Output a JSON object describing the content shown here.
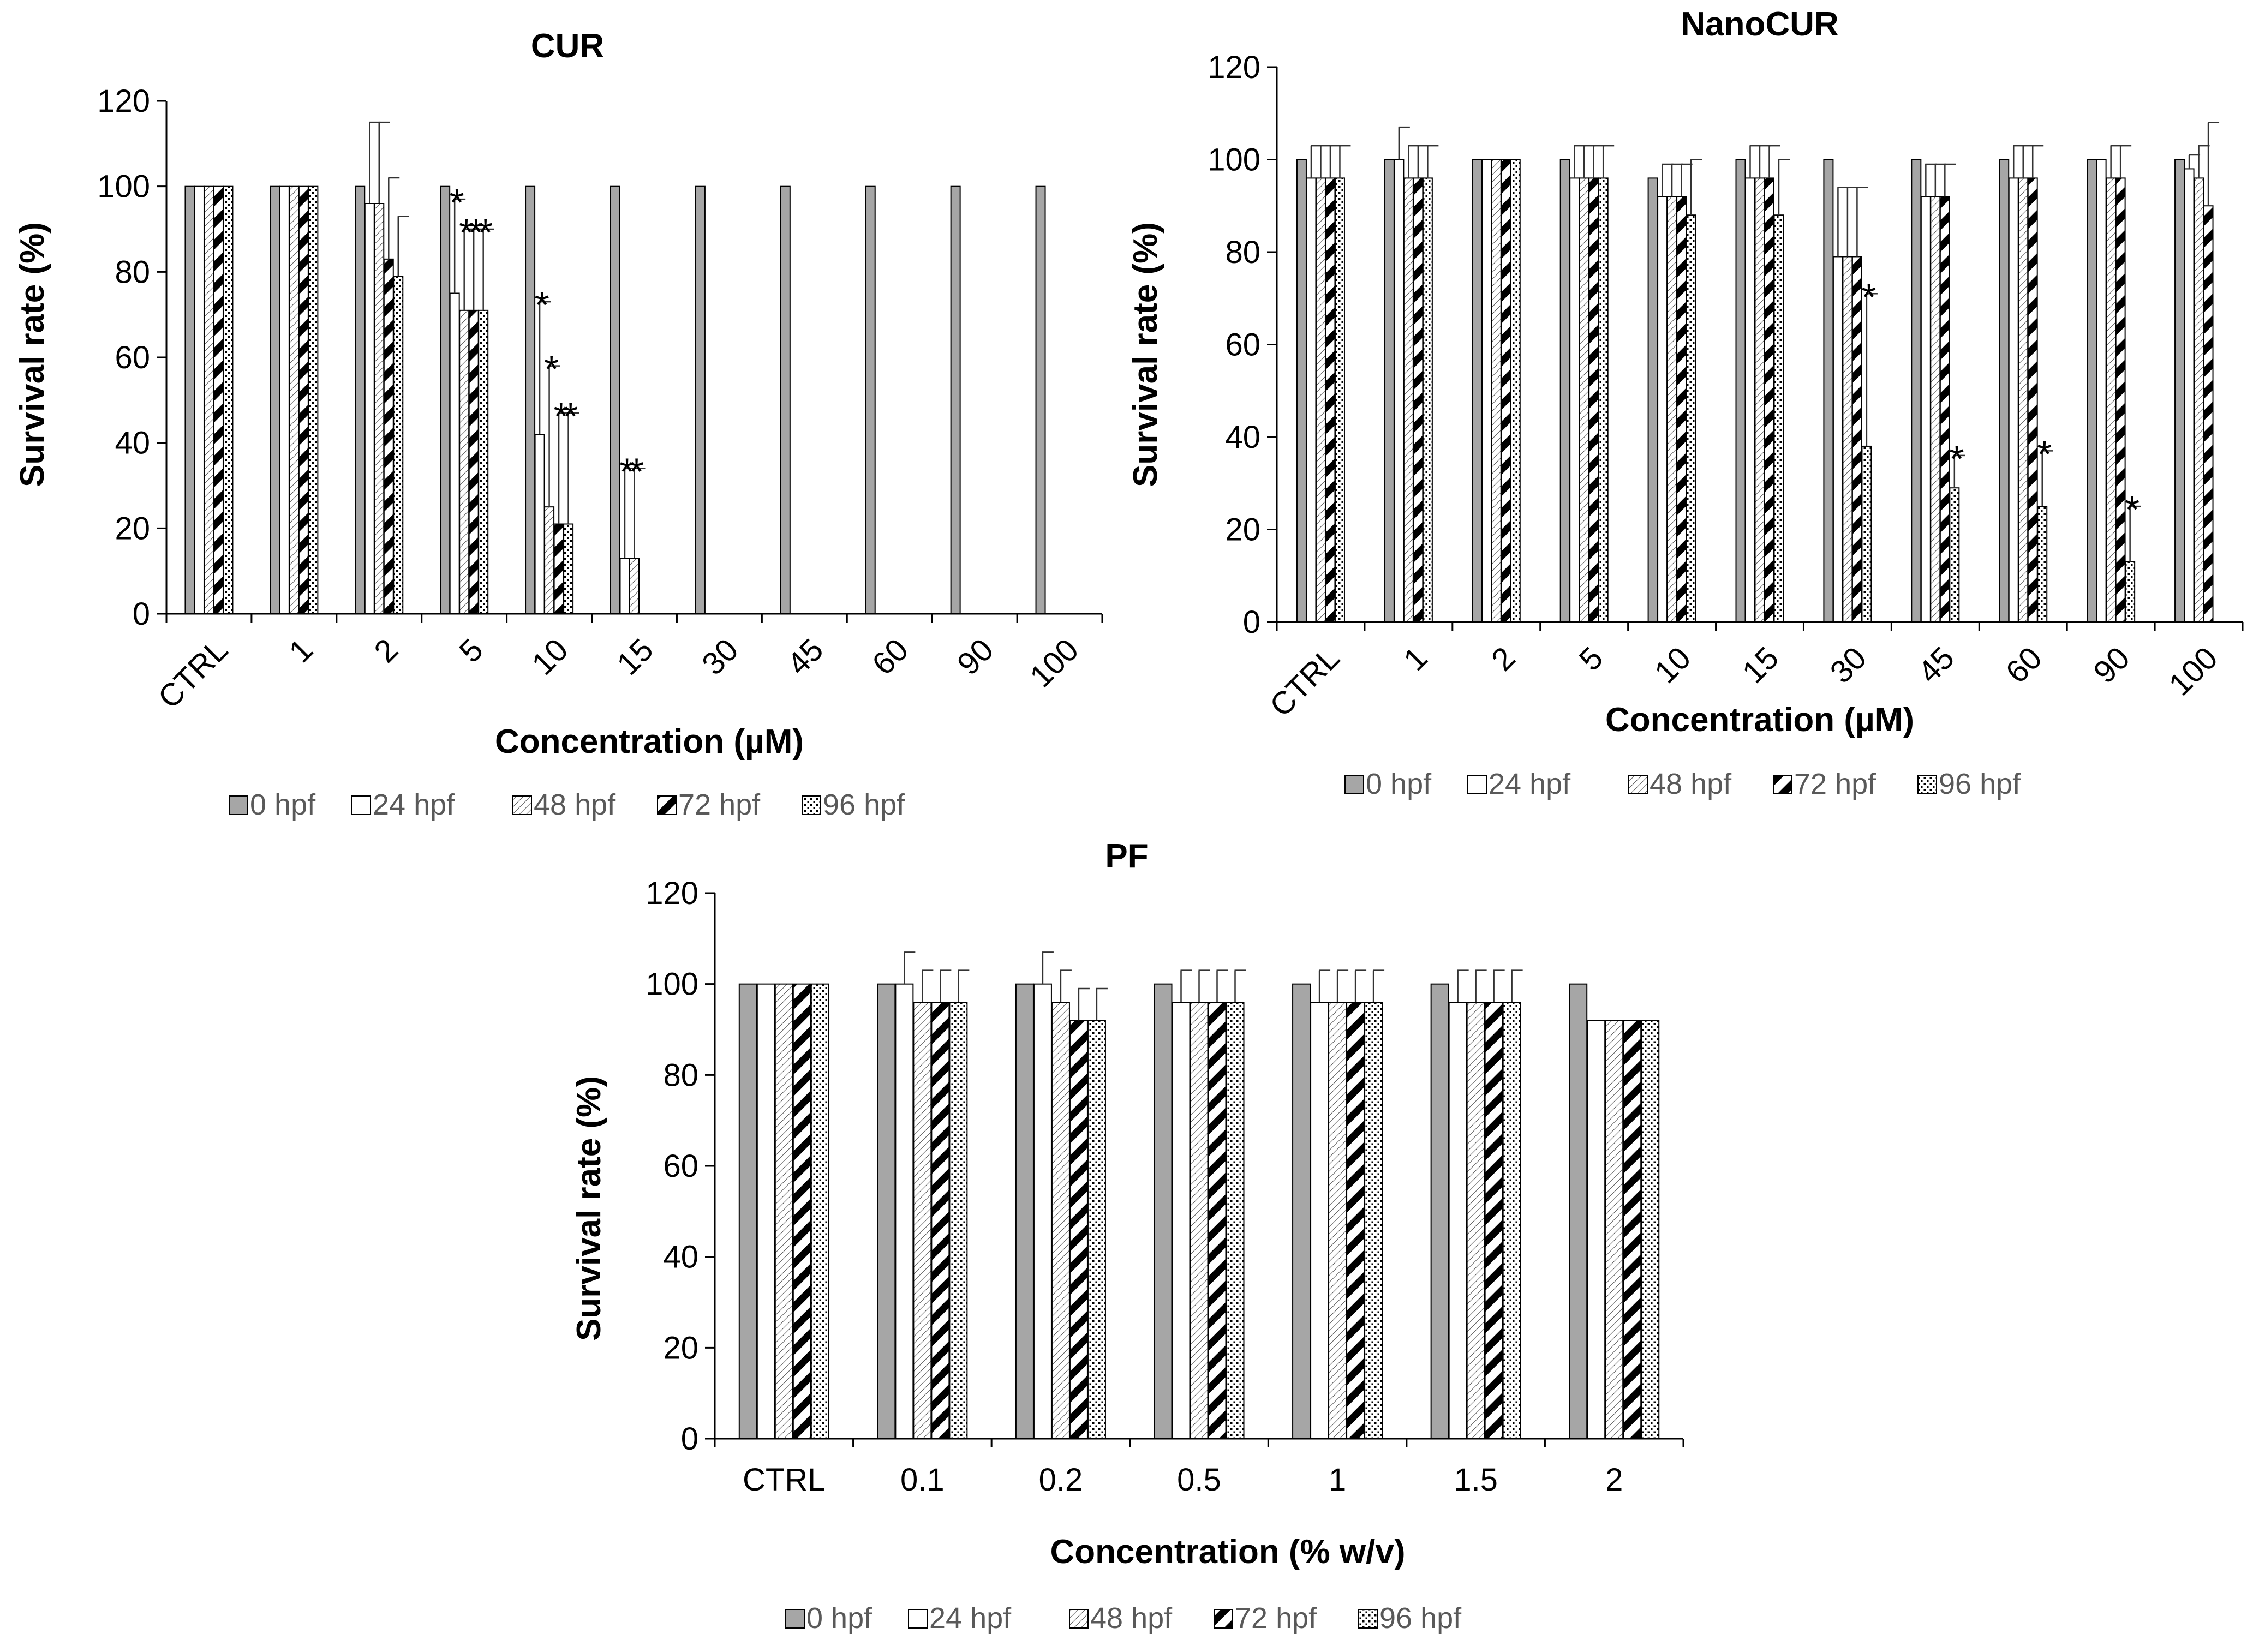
{
  "legend": [
    {
      "label": "0 hpf",
      "pattern": "solid"
    },
    {
      "label": "24 hpf",
      "pattern": "white"
    },
    {
      "label": "48 hpf",
      "pattern": "fine"
    },
    {
      "label": "72 hpf",
      "pattern": "thick"
    },
    {
      "label": "96 hpf",
      "pattern": "dots"
    }
  ],
  "colors": {
    "bar_gray": "#a6a6a6",
    "stroke": "#000000",
    "legend_text": "#595959"
  },
  "chart_data": [
    {
      "id": "cur",
      "type": "bar",
      "title": "CUR",
      "xlabel": "Concentration (µM)",
      "ylabel": "Survival rate (%)",
      "ylim": [
        0,
        120
      ],
      "yticks": [
        0,
        20,
        40,
        60,
        80,
        100,
        120
      ],
      "categories": [
        "CTRL",
        "1",
        "2",
        "5",
        "10",
        "15",
        "30",
        "45",
        "60",
        "90",
        "100"
      ],
      "series": [
        {
          "name": "0 hpf",
          "values": [
            100,
            100,
            100,
            100,
            100,
            100,
            100,
            100,
            100,
            100,
            100
          ]
        },
        {
          "name": "24 hpf",
          "values": [
            100,
            100,
            96,
            75,
            42,
            13,
            0,
            0,
            0,
            0,
            0
          ],
          "errors": [
            0,
            0,
            19,
            22,
            31,
            21,
            0,
            0,
            0,
            0,
            0
          ]
        },
        {
          "name": "48 hpf",
          "values": [
            100,
            100,
            96,
            71,
            25,
            13,
            0,
            0,
            0,
            0,
            0
          ],
          "errors": [
            0,
            0,
            19,
            19,
            33,
            21,
            0,
            0,
            0,
            0,
            0
          ]
        },
        {
          "name": "72 hpf",
          "values": [
            100,
            100,
            83,
            71,
            21,
            0,
            0,
            0,
            0,
            0,
            0
          ],
          "errors": [
            0,
            0,
            19,
            19,
            26,
            0,
            0,
            0,
            0,
            0,
            0
          ]
        },
        {
          "name": "96 hpf",
          "values": [
            100,
            100,
            79,
            71,
            21,
            0,
            0,
            0,
            0,
            0,
            0
          ],
          "errors": [
            0,
            0,
            14,
            19,
            26,
            0,
            0,
            0,
            0,
            0,
            0
          ]
        }
      ],
      "significance": [
        {
          "category": "5",
          "series": "24 hpf"
        },
        {
          "category": "5",
          "series": "48 hpf"
        },
        {
          "category": "5",
          "series": "72 hpf"
        },
        {
          "category": "5",
          "series": "96 hpf"
        },
        {
          "category": "10",
          "series": "24 hpf"
        },
        {
          "category": "10",
          "series": "48 hpf"
        },
        {
          "category": "10",
          "series": "72 hpf"
        },
        {
          "category": "10",
          "series": "96 hpf"
        },
        {
          "category": "15",
          "series": "24 hpf"
        },
        {
          "category": "15",
          "series": "48 hpf"
        }
      ],
      "significance_symbol": "*"
    },
    {
      "id": "nanocur",
      "type": "bar",
      "title": "NanoCUR",
      "xlabel": "Concentration (µM)",
      "ylabel": "Survival rate (%)",
      "ylim": [
        0,
        120
      ],
      "yticks": [
        0,
        20,
        40,
        60,
        80,
        100,
        120
      ],
      "categories": [
        "CTRL",
        "1",
        "2",
        "5",
        "10",
        "15",
        "30",
        "45",
        "60",
        "90",
        "100"
      ],
      "series": [
        {
          "name": "0 hpf",
          "values": [
            100,
            100,
            100,
            100,
            96,
            100,
            100,
            100,
            100,
            100,
            100
          ]
        },
        {
          "name": "24 hpf",
          "values": [
            96,
            100,
            100,
            96,
            92,
            96,
            79,
            92,
            96,
            100,
            98
          ],
          "errors": [
            7,
            7,
            0,
            7,
            7,
            7,
            15,
            7,
            7,
            0,
            3
          ]
        },
        {
          "name": "48 hpf",
          "values": [
            96,
            96,
            100,
            96,
            92,
            96,
            79,
            92,
            96,
            96,
            96
          ],
          "errors": [
            7,
            7,
            0,
            7,
            7,
            7,
            15,
            7,
            7,
            7,
            7
          ]
        },
        {
          "name": "72 hpf",
          "values": [
            96,
            96,
            100,
            96,
            92,
            96,
            79,
            92,
            96,
            96,
            90
          ],
          "errors": [
            7,
            7,
            0,
            7,
            7,
            7,
            15,
            7,
            7,
            7,
            18
          ]
        },
        {
          "name": "96 hpf",
          "values": [
            96,
            96,
            100,
            96,
            88,
            88,
            38,
            29,
            25,
            13,
            0
          ],
          "errors": [
            7,
            7,
            0,
            7,
            12,
            12,
            33,
            7,
            12,
            12,
            0
          ]
        }
      ],
      "significance": [
        {
          "category": "30",
          "series": "96 hpf"
        },
        {
          "category": "45",
          "series": "96 hpf"
        },
        {
          "category": "60",
          "series": "96 hpf"
        },
        {
          "category": "90",
          "series": "96 hpf"
        }
      ],
      "significance_symbol": "*"
    },
    {
      "id": "pf",
      "type": "bar",
      "title": "PF",
      "xlabel": "Concentration (% w/v)",
      "ylabel": "Survival rate (%)",
      "ylim": [
        0,
        120
      ],
      "yticks": [
        0,
        20,
        40,
        60,
        80,
        100,
        120
      ],
      "categories": [
        "CTRL",
        "0.1",
        "0.2",
        "0.5",
        "1",
        "1.5",
        "2"
      ],
      "series": [
        {
          "name": "0 hpf",
          "values": [
            100,
            100,
            100,
            100,
            100,
            100,
            100
          ]
        },
        {
          "name": "24 hpf",
          "values": [
            100,
            100,
            100,
            96,
            96,
            96,
            92
          ],
          "errors": [
            0,
            7,
            7,
            7,
            7,
            7,
            0
          ]
        },
        {
          "name": "48 hpf",
          "values": [
            100,
            96,
            96,
            96,
            96,
            96,
            92
          ],
          "errors": [
            0,
            7,
            7,
            7,
            7,
            7,
            0
          ]
        },
        {
          "name": "72 hpf",
          "values": [
            100,
            96,
            92,
            96,
            96,
            96,
            92
          ],
          "errors": [
            0,
            7,
            7,
            7,
            7,
            7,
            0
          ]
        },
        {
          "name": "96 hpf",
          "values": [
            100,
            96,
            92,
            96,
            96,
            96,
            92
          ],
          "errors": [
            0,
            7,
            7,
            7,
            7,
            7,
            0
          ]
        }
      ],
      "significance": [],
      "significance_symbol": "*"
    }
  ]
}
